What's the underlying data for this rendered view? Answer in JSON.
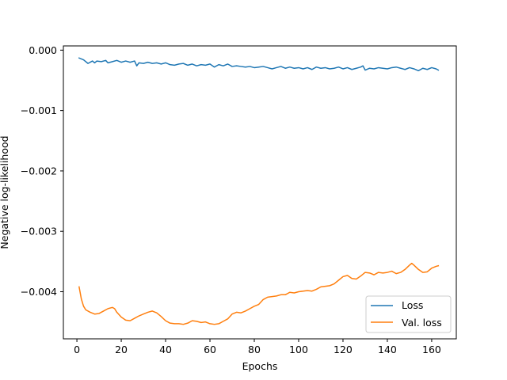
{
  "chart_data": {
    "type": "line",
    "title": "",
    "xlabel": "Epochs",
    "ylabel": "Negative log-likelihood",
    "xlim": [
      -6.1,
      171.1
    ],
    "ylim": [
      -0.00478,
      7e-05
    ],
    "xticks": [
      0,
      20,
      40,
      60,
      80,
      100,
      120,
      140,
      160
    ],
    "xtick_labels": [
      "0",
      "20",
      "40",
      "60",
      "80",
      "100",
      "120",
      "140",
      "160"
    ],
    "yticks": [
      0.0,
      -0.001,
      -0.002,
      -0.003,
      -0.004
    ],
    "ytick_labels": [
      "0.000",
      "−0.001",
      "−0.002",
      "−0.003",
      "−0.004"
    ],
    "grid": false,
    "legend_position": "lower-right",
    "series": [
      {
        "name": "Loss",
        "color": "#1f77b4",
        "points": [
          [
            1,
            -0.00013
          ],
          [
            3,
            -0.00016
          ],
          [
            5,
            -0.00022
          ],
          [
            7,
            -0.00018
          ],
          [
            8,
            -0.00021
          ],
          [
            9,
            -0.00018
          ],
          [
            11,
            -0.00019
          ],
          [
            13,
            -0.00017
          ],
          [
            14,
            -0.00021
          ],
          [
            16,
            -0.00019
          ],
          [
            18,
            -0.00017
          ],
          [
            20,
            -0.0002
          ],
          [
            22,
            -0.00018
          ],
          [
            24,
            -0.0002
          ],
          [
            26,
            -0.00018
          ],
          [
            27,
            -0.00026
          ],
          [
            28,
            -0.00021
          ],
          [
            30,
            -0.00022
          ],
          [
            32,
            -0.0002
          ],
          [
            34,
            -0.00022
          ],
          [
            36,
            -0.00021
          ],
          [
            38,
            -0.00023
          ],
          [
            40,
            -0.00021
          ],
          [
            42,
            -0.00024
          ],
          [
            44,
            -0.00025
          ],
          [
            46,
            -0.00023
          ],
          [
            48,
            -0.00022
          ],
          [
            50,
            -0.00025
          ],
          [
            52,
            -0.00023
          ],
          [
            54,
            -0.00026
          ],
          [
            56,
            -0.00024
          ],
          [
            58,
            -0.00025
          ],
          [
            60,
            -0.00023
          ],
          [
            62,
            -0.00028
          ],
          [
            64,
            -0.00024
          ],
          [
            66,
            -0.00026
          ],
          [
            68,
            -0.00023
          ],
          [
            70,
            -0.00027
          ],
          [
            72,
            -0.00026
          ],
          [
            74,
            -0.00027
          ],
          [
            76,
            -0.00028
          ],
          [
            78,
            -0.00027
          ],
          [
            80,
            -0.00029
          ],
          [
            82,
            -0.00028
          ],
          [
            84,
            -0.00027
          ],
          [
            86,
            -0.00029
          ],
          [
            88,
            -0.00031
          ],
          [
            90,
            -0.00029
          ],
          [
            92,
            -0.00027
          ],
          [
            94,
            -0.0003
          ],
          [
            96,
            -0.00028
          ],
          [
            98,
            -0.0003
          ],
          [
            100,
            -0.00029
          ],
          [
            102,
            -0.00031
          ],
          [
            104,
            -0.00029
          ],
          [
            106,
            -0.00032
          ],
          [
            108,
            -0.00028
          ],
          [
            110,
            -0.0003
          ],
          [
            112,
            -0.00029
          ],
          [
            114,
            -0.00031
          ],
          [
            116,
            -0.0003
          ],
          [
            118,
            -0.00028
          ],
          [
            120,
            -0.00031
          ],
          [
            122,
            -0.00029
          ],
          [
            124,
            -0.00032
          ],
          [
            126,
            -0.0003
          ],
          [
            128,
            -0.00028
          ],
          [
            129,
            -0.00026
          ],
          [
            130,
            -0.00033
          ],
          [
            132,
            -0.0003
          ],
          [
            134,
            -0.00031
          ],
          [
            136,
            -0.00029
          ],
          [
            138,
            -0.0003
          ],
          [
            140,
            -0.00031
          ],
          [
            142,
            -0.00029
          ],
          [
            144,
            -0.00028
          ],
          [
            146,
            -0.0003
          ],
          [
            148,
            -0.00032
          ],
          [
            150,
            -0.00029
          ],
          [
            152,
            -0.00031
          ],
          [
            154,
            -0.00034
          ],
          [
            156,
            -0.0003
          ],
          [
            158,
            -0.00032
          ],
          [
            160,
            -0.00029
          ],
          [
            162,
            -0.00031
          ],
          [
            163,
            -0.00033
          ]
        ]
      },
      {
        "name": "Val. loss",
        "color": "#ff7f0e",
        "points": [
          [
            1,
            -0.00392
          ],
          [
            2,
            -0.00412
          ],
          [
            3,
            -0.00424
          ],
          [
            4,
            -0.0043
          ],
          [
            6,
            -0.00434
          ],
          [
            8,
            -0.00437
          ],
          [
            10,
            -0.00436
          ],
          [
            12,
            -0.00432
          ],
          [
            14,
            -0.00428
          ],
          [
            16,
            -0.00426
          ],
          [
            17,
            -0.00428
          ],
          [
            18,
            -0.00434
          ],
          [
            20,
            -0.00442
          ],
          [
            22,
            -0.00447
          ],
          [
            24,
            -0.00448
          ],
          [
            26,
            -0.00444
          ],
          [
            28,
            -0.0044
          ],
          [
            30,
            -0.00437
          ],
          [
            32,
            -0.00434
          ],
          [
            34,
            -0.00432
          ],
          [
            36,
            -0.00435
          ],
          [
            38,
            -0.00441
          ],
          [
            40,
            -0.00448
          ],
          [
            42,
            -0.00452
          ],
          [
            44,
            -0.00453
          ],
          [
            46,
            -0.00453
          ],
          [
            48,
            -0.00454
          ],
          [
            50,
            -0.00452
          ],
          [
            52,
            -0.00448
          ],
          [
            54,
            -0.00449
          ],
          [
            56,
            -0.00451
          ],
          [
            58,
            -0.0045
          ],
          [
            60,
            -0.00453
          ],
          [
            62,
            -0.00454
          ],
          [
            64,
            -0.00453
          ],
          [
            66,
            -0.00449
          ],
          [
            68,
            -0.00445
          ],
          [
            70,
            -0.00437
          ],
          [
            72,
            -0.00434
          ],
          [
            74,
            -0.00435
          ],
          [
            76,
            -0.00432
          ],
          [
            78,
            -0.00428
          ],
          [
            80,
            -0.00424
          ],
          [
            82,
            -0.00421
          ],
          [
            84,
            -0.00413
          ],
          [
            86,
            -0.00409
          ],
          [
            88,
            -0.00408
          ],
          [
            90,
            -0.00407
          ],
          [
            92,
            -0.00405
          ],
          [
            94,
            -0.00405
          ],
          [
            96,
            -0.00401
          ],
          [
            98,
            -0.00402
          ],
          [
            100,
            -0.004
          ],
          [
            102,
            -0.00399
          ],
          [
            104,
            -0.00398
          ],
          [
            106,
            -0.00399
          ],
          [
            108,
            -0.00396
          ],
          [
            110,
            -0.00392
          ],
          [
            112,
            -0.00391
          ],
          [
            114,
            -0.0039
          ],
          [
            116,
            -0.00387
          ],
          [
            118,
            -0.00381
          ],
          [
            120,
            -0.00375
          ],
          [
            122,
            -0.00373
          ],
          [
            124,
            -0.00378
          ],
          [
            126,
            -0.00379
          ],
          [
            128,
            -0.00374
          ],
          [
            130,
            -0.00368
          ],
          [
            132,
            -0.00369
          ],
          [
            134,
            -0.00372
          ],
          [
            136,
            -0.00368
          ],
          [
            138,
            -0.00369
          ],
          [
            140,
            -0.00368
          ],
          [
            142,
            -0.00366
          ],
          [
            144,
            -0.0037
          ],
          [
            146,
            -0.00368
          ],
          [
            148,
            -0.00363
          ],
          [
            150,
            -0.00356
          ],
          [
            151,
            -0.00353
          ],
          [
            152,
            -0.00356
          ],
          [
            154,
            -0.00363
          ],
          [
            156,
            -0.00368
          ],
          [
            158,
            -0.00367
          ],
          [
            160,
            -0.00361
          ],
          [
            162,
            -0.00358
          ],
          [
            163,
            -0.00357
          ]
        ]
      }
    ]
  }
}
